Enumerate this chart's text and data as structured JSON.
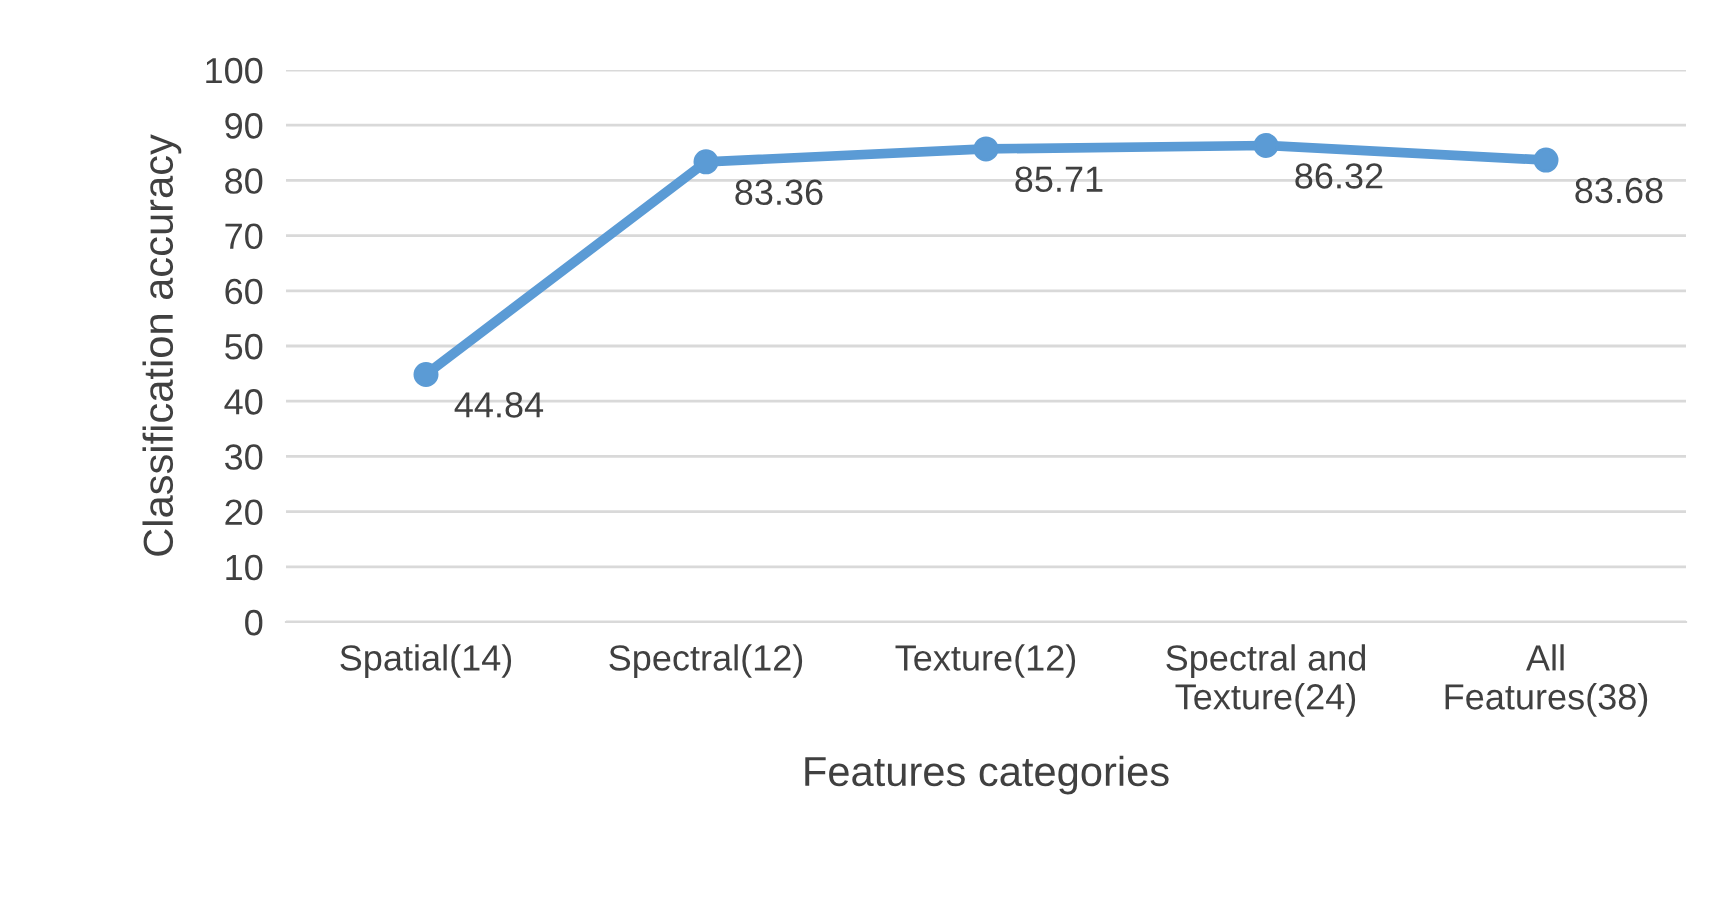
{
  "chart_data": {
    "type": "line",
    "xlabel": "Features categories",
    "ylabel": "Classification accuracy",
    "categories": [
      "Spatial(14)",
      "Spectral(12)",
      "Texture(12)",
      "Spectral and\nTexture(24)",
      "All\nFeatures(38)"
    ],
    "series": [
      {
        "color": "#5b9bd5",
        "values": [
          44.84,
          83.36,
          85.71,
          86.32,
          83.68
        ]
      }
    ],
    "ylim": [
      0,
      100
    ],
    "yticks": [
      0,
      10,
      20,
      30,
      40,
      50,
      60,
      70,
      80,
      90,
      100
    ],
    "grid": "y",
    "marker": "circle",
    "line_style": "solid",
    "data_labels": true,
    "legend": false
  }
}
